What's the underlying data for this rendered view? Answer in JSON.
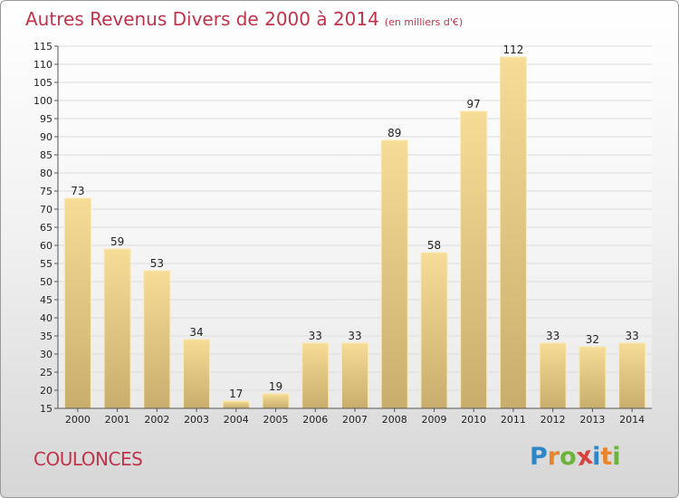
{
  "chart_data": {
    "type": "bar",
    "title": "Autres Revenus Divers de 2000 à 2014",
    "subtitle": "(en milliers d'€)",
    "categories": [
      "2000",
      "2001",
      "2002",
      "2003",
      "2004",
      "2005",
      "2006",
      "2007",
      "2008",
      "2009",
      "2010",
      "2011",
      "2012",
      "2013",
      "2014"
    ],
    "values": [
      73,
      59,
      53,
      34,
      17,
      19,
      33,
      33,
      89,
      58,
      97,
      112,
      33,
      32,
      33
    ],
    "ylim": [
      15,
      115
    ],
    "yticks": [
      15,
      20,
      25,
      30,
      35,
      40,
      45,
      50,
      55,
      60,
      65,
      70,
      75,
      80,
      85,
      90,
      95,
      100,
      105,
      110,
      115
    ],
    "grid": true
  },
  "commune": "COULONCES",
  "logo": {
    "letters": [
      "P",
      "r",
      "o",
      "x",
      "i",
      "t",
      "i"
    ],
    "colors": [
      "#2e86c9",
      "#e8842b",
      "#6bb33a",
      "#d94040",
      "#2e86c9",
      "#e8842b",
      "#6bb33a"
    ]
  },
  "colors": {
    "accent": "#c0334b",
    "bar_light": "#f6dc96",
    "bar_dark": "#c9ad6d",
    "grid": "#dcdcdc"
  }
}
